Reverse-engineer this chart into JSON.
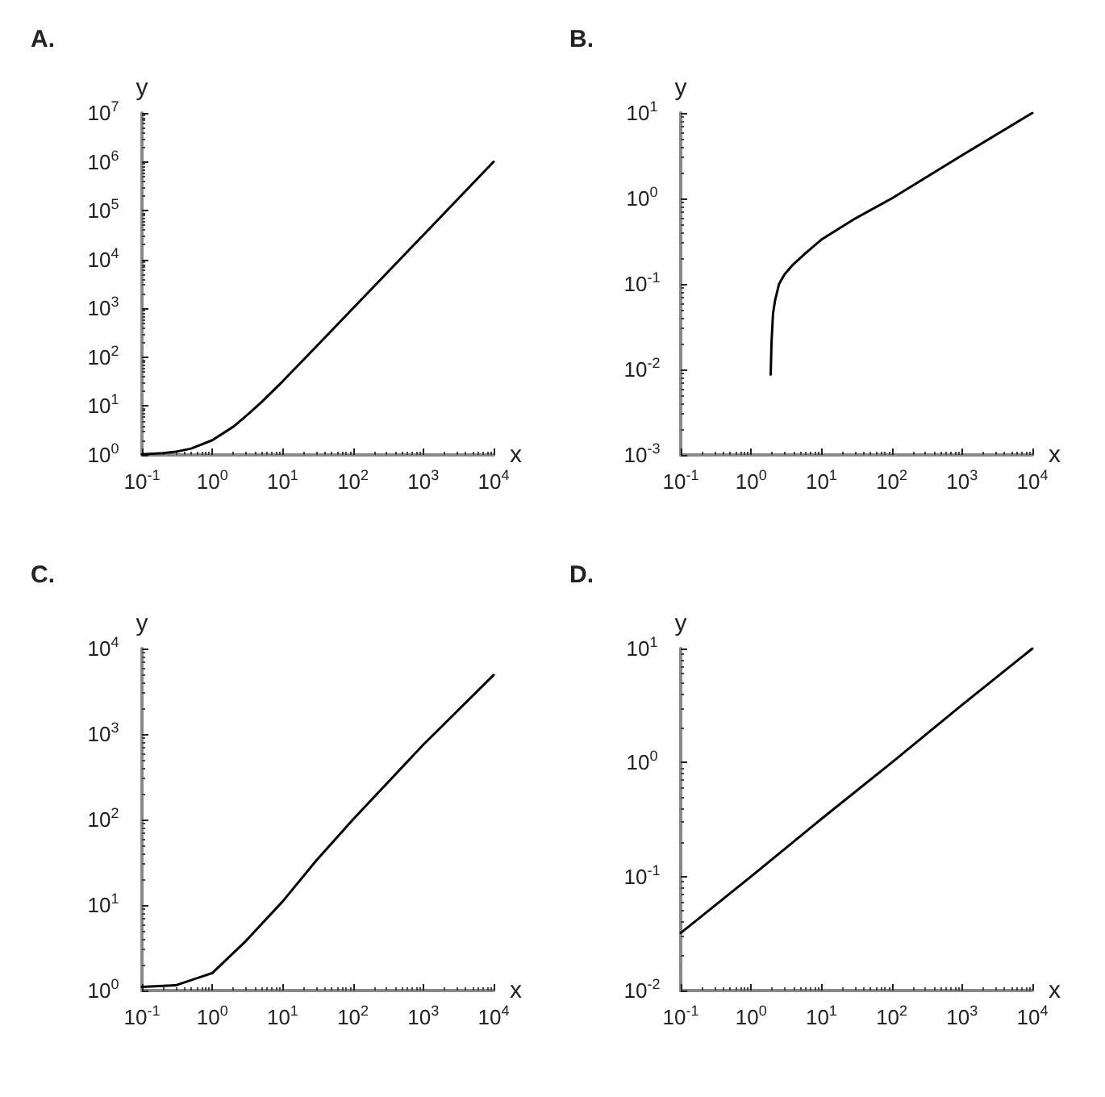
{
  "chart_data": [
    {
      "type": "line",
      "title": "A.",
      "xlabel": "x",
      "ylabel": "y",
      "log": "xy",
      "grid": false,
      "marker": "none",
      "line_style": "solid",
      "color": "#000000",
      "x": [
        0.1,
        0.2,
        0.3,
        0.5,
        1,
        2,
        3,
        5,
        10,
        30,
        100,
        1000,
        10000
      ],
      "values": [
        1.03,
        1.09,
        1.16,
        1.35,
        2,
        3.8,
        6.2,
        12,
        32,
        165,
        1000,
        31600,
        1000000
      ],
      "xlim": [
        0.1,
        10000
      ],
      "ylim": [
        1,
        10000000
      ],
      "xticks": [
        {
          "value": 0.1,
          "label": "10$^{-1}$"
        },
        {
          "value": 1,
          "label": "10$^{0}$"
        },
        {
          "value": 10,
          "label": "10$^{1}$"
        },
        {
          "value": 100,
          "label": "10$^{2}$"
        },
        {
          "value": 1000,
          "label": "10$^{3}$"
        },
        {
          "value": 10000,
          "label": "10$^{4}$"
        }
      ],
      "yticks": [
        {
          "value": 1,
          "label": "10$^{0}$"
        },
        {
          "value": 10,
          "label": "10$^{1}$"
        },
        {
          "value": 100,
          "label": "10$^{2}$"
        },
        {
          "value": 1000,
          "label": "10$^{3}$"
        },
        {
          "value": 10000,
          "label": "10$^{4}$"
        },
        {
          "value": 100000,
          "label": "10$^{5}$"
        },
        {
          "value": 1000000,
          "label": "10$^{6}$"
        },
        {
          "value": 10000000,
          "label": "10$^{7}$"
        }
      ]
    },
    {
      "type": "line",
      "title": "B.",
      "xlabel": "x",
      "ylabel": "y",
      "log": "xy",
      "grid": false,
      "marker": "none",
      "line_style": "solid",
      "color": "#000000",
      "x": [
        1.9,
        1.95,
        2.05,
        2.2,
        2.5,
        3,
        4,
        6,
        10,
        30,
        100,
        1000,
        10000
      ],
      "values": [
        0.0087,
        0.02,
        0.045,
        0.065,
        0.1,
        0.13,
        0.17,
        0.23,
        0.33,
        0.58,
        1,
        3.2,
        10
      ],
      "xlim": [
        0.1,
        10000
      ],
      "ylim": [
        0.001,
        10
      ],
      "xticks": [
        {
          "value": 0.1,
          "label": "10$^{-1}$"
        },
        {
          "value": 1,
          "label": "10$^{0}$"
        },
        {
          "value": 10,
          "label": "10$^{1}$"
        },
        {
          "value": 100,
          "label": "10$^{2}$"
        },
        {
          "value": 1000,
          "label": "10$^{3}$"
        },
        {
          "value": 10000,
          "label": "10$^{4}$"
        }
      ],
      "yticks": [
        {
          "value": 0.001,
          "label": "10$^{-3}$"
        },
        {
          "value": 0.01,
          "label": "10$^{-2}$"
        },
        {
          "value": 0.1,
          "label": "10$^{-1}$"
        },
        {
          "value": 1,
          "label": "10$^{0}$"
        },
        {
          "value": 10,
          "label": "10$^{1}$"
        }
      ]
    },
    {
      "type": "line",
      "title": "C.",
      "xlabel": "x",
      "ylabel": "y",
      "log": "xy",
      "grid": false,
      "marker": "none",
      "line_style": "solid",
      "color": "#000000",
      "x": [
        0.1,
        0.3,
        1,
        3,
        10,
        30,
        100,
        1000,
        10000
      ],
      "values": [
        1.1,
        1.15,
        1.6,
        3.8,
        11,
        33,
        100,
        750,
        4900
      ],
      "xlim": [
        0.1,
        10000
      ],
      "ylim": [
        1,
        10000
      ],
      "xticks": [
        {
          "value": 0.1,
          "label": "10$^{-1}$"
        },
        {
          "value": 1,
          "label": "10$^{0}$"
        },
        {
          "value": 10,
          "label": "10$^{1}$"
        },
        {
          "value": 100,
          "label": "10$^{2}$"
        },
        {
          "value": 1000,
          "label": "10$^{3}$"
        },
        {
          "value": 10000,
          "label": "10$^{4}$"
        }
      ],
      "yticks": [
        {
          "value": 1,
          "label": "10$^{0}$"
        },
        {
          "value": 10,
          "label": "10$^{1}$"
        },
        {
          "value": 100,
          "label": "10$^{2}$"
        },
        {
          "value": 1000,
          "label": "10$^{3}$"
        },
        {
          "value": 10000,
          "label": "10$^{4}$"
        }
      ]
    },
    {
      "type": "line",
      "title": "D.",
      "xlabel": "x",
      "ylabel": "y",
      "log": "xy",
      "grid": false,
      "marker": "none",
      "line_style": "solid",
      "color": "#000000",
      "x": [
        0.1,
        1,
        10,
        100,
        1000,
        10000
      ],
      "values": [
        0.032,
        0.1,
        0.32,
        1,
        3.2,
        10
      ],
      "xlim": [
        0.1,
        10000
      ],
      "ylim": [
        0.01,
        10
      ],
      "xticks": [
        {
          "value": 0.1,
          "label": "10$^{-1}$"
        },
        {
          "value": 1,
          "label": "10$^{0}$"
        },
        {
          "value": 10,
          "label": "10$^{1}$"
        },
        {
          "value": 100,
          "label": "10$^{2}$"
        },
        {
          "value": 1000,
          "label": "10$^{3}$"
        },
        {
          "value": 10000,
          "label": "10$^{4}$"
        }
      ],
      "yticks": [
        {
          "value": 0.01,
          "label": "10$^{-2}$"
        },
        {
          "value": 0.1,
          "label": "10$^{-1}$"
        },
        {
          "value": 1,
          "label": "10$^{0}$"
        },
        {
          "value": 10,
          "label": "10$^{1}$"
        }
      ]
    }
  ]
}
